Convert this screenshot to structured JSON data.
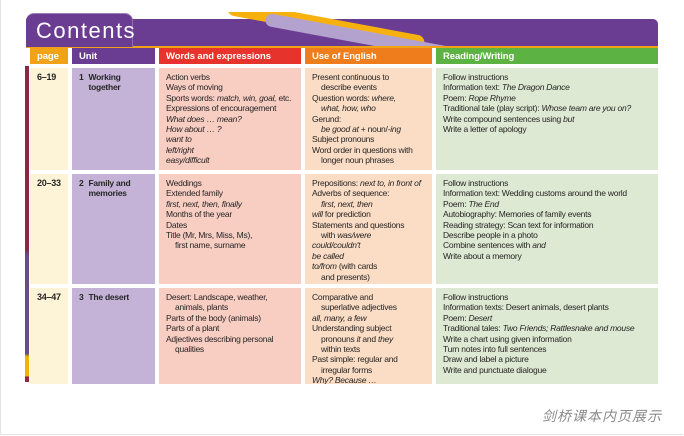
{
  "banner": {
    "title": "Contents",
    "bg": "#6b3d92",
    "underline": "#f0a316",
    "swoosh_yellow": "#f7b10e",
    "swoosh_lavender": "#b4a2ce"
  },
  "left_stripe": {
    "maroon": "#8a2743",
    "purple": "#6b4a86",
    "yellow": "#f2b200"
  },
  "caption": "剑桥课本内页展示",
  "table": {
    "columns": [
      {
        "key": "page",
        "label": "page",
        "header_bg": "#f0a316",
        "cell_bg": "#fdf3d6"
      },
      {
        "key": "unit",
        "label": "Unit",
        "header_bg": "#6b3d92",
        "cell_bg": "#c4b2d7"
      },
      {
        "key": "words",
        "label": "Words and expressions",
        "header_bg": "#e6342c",
        "cell_bg": "#f8cdc2"
      },
      {
        "key": "english",
        "label": "Use of English",
        "header_bg": "#ef7d1b",
        "cell_bg": "#fbdcc4"
      },
      {
        "key": "reading",
        "label": "Reading/Writing",
        "header_bg": "#5cb343",
        "cell_bg": "#dde9d2"
      }
    ],
    "rows": [
      {
        "page": "6–19",
        "unit": {
          "num": "1",
          "name": [
            "Working",
            "together"
          ]
        },
        "words": [
          {
            "s": [
              [
                "Action verbs"
              ]
            ]
          },
          {
            "s": [
              [
                "Ways of moving"
              ]
            ]
          },
          {
            "s": [
              [
                "Sports words: "
              ],
              [
                "match, win, goal,",
                1
              ],
              [
                " etc."
              ]
            ]
          },
          {
            "s": [
              [
                "Expressions of encouragement"
              ]
            ]
          },
          {
            "s": [
              [
                "What does … mean?",
                1
              ]
            ]
          },
          {
            "s": [
              [
                "How about … ?",
                1
              ]
            ]
          },
          {
            "s": [
              [
                "want to",
                1
              ]
            ]
          },
          {
            "s": [
              [
                "left/right",
                1
              ]
            ]
          },
          {
            "s": [
              [
                "easy/difficult",
                1
              ]
            ]
          }
        ],
        "english": [
          {
            "s": [
              [
                "Present continuous to"
              ]
            ]
          },
          {
            "ind": 1,
            "s": [
              [
                "describe events"
              ]
            ]
          },
          {
            "s": [
              [
                "Question words: "
              ],
              [
                "where,",
                1
              ]
            ]
          },
          {
            "ind": 1,
            "s": [
              [
                "what, how, who",
                1
              ]
            ]
          },
          {
            "s": [
              [
                "Gerund:"
              ]
            ]
          },
          {
            "ind": 1,
            "s": [
              [
                "be good at",
                1
              ],
              [
                " + noun/"
              ],
              [
                "-ing",
                1
              ]
            ]
          },
          {
            "s": [
              [
                "Subject pronouns"
              ]
            ]
          },
          {
            "s": [
              [
                "Word order in questions with"
              ]
            ]
          },
          {
            "ind": 1,
            "s": [
              [
                "longer noun phrases"
              ]
            ]
          }
        ],
        "reading": [
          {
            "s": [
              [
                "Follow instructions"
              ]
            ]
          },
          {
            "s": [
              [
                "Information text: "
              ],
              [
                "The Dragon Dance",
                1
              ]
            ]
          },
          {
            "s": [
              [
                "Poem: "
              ],
              [
                "Rope Rhyme",
                1
              ]
            ]
          },
          {
            "s": [
              [
                "Traditional tale (play script): "
              ],
              [
                "Whose team are you on?",
                1
              ]
            ]
          },
          {
            "s": [
              [
                "Write compound sentences using "
              ],
              [
                "but",
                1
              ]
            ]
          },
          {
            "s": [
              [
                "Write a letter of apology"
              ]
            ]
          }
        ]
      },
      {
        "page": "20–33",
        "unit": {
          "num": "2",
          "name": [
            "Family and",
            "memories"
          ]
        },
        "words": [
          {
            "s": [
              [
                "Weddings"
              ]
            ]
          },
          {
            "s": [
              [
                "Extended family"
              ]
            ]
          },
          {
            "s": [
              [
                "first, next, then, finally",
                1
              ]
            ]
          },
          {
            "s": [
              [
                "Months of the year"
              ]
            ]
          },
          {
            "s": [
              [
                "Dates"
              ]
            ]
          },
          {
            "s": [
              [
                "Title (Mr, Mrs, Miss, Ms),"
              ]
            ]
          },
          {
            "ind": 1,
            "s": [
              [
                "first name, surname"
              ]
            ]
          }
        ],
        "english": [
          {
            "s": [
              [
                "Prepositions: "
              ],
              [
                "next to, in front of",
                1
              ]
            ]
          },
          {
            "s": [
              [
                "Adverbs of sequence:"
              ]
            ]
          },
          {
            "ind": 1,
            "s": [
              [
                "first, next, then",
                1
              ]
            ]
          },
          {
            "s": [
              [
                "will",
                1
              ],
              [
                " for prediction"
              ]
            ]
          },
          {
            "s": [
              [
                "Statements and questions"
              ]
            ]
          },
          {
            "ind": 1,
            "s": [
              [
                "with "
              ],
              [
                "was/were",
                1
              ]
            ]
          },
          {
            "s": [
              [
                "could/couldn't",
                1
              ]
            ]
          },
          {
            "s": [
              [
                "be called",
                1
              ]
            ]
          },
          {
            "s": [
              [
                "to/from",
                1
              ],
              [
                " (with cards"
              ]
            ]
          },
          {
            "ind": 1,
            "s": [
              [
                "and presents)"
              ]
            ]
          }
        ],
        "reading": [
          {
            "s": [
              [
                "Follow instructions"
              ]
            ]
          },
          {
            "s": [
              [
                "Information text: Wedding customs around the world"
              ]
            ]
          },
          {
            "s": [
              [
                "Poem: "
              ],
              [
                "The End",
                1
              ]
            ]
          },
          {
            "s": [
              [
                "Autobiography: Memories of family events"
              ]
            ]
          },
          {
            "s": [
              [
                "Reading strategy: Scan text for information"
              ]
            ]
          },
          {
            "s": [
              [
                "Describe people in a photo"
              ]
            ]
          },
          {
            "s": [
              [
                "Combine sentences with "
              ],
              [
                "and",
                1
              ]
            ]
          },
          {
            "s": [
              [
                "Write about a memory"
              ]
            ]
          }
        ]
      },
      {
        "page": "34–47",
        "unit": {
          "num": "3",
          "name": [
            "The desert"
          ]
        },
        "words": [
          {
            "s": [
              [
                "Desert: Landscape, weather,"
              ]
            ]
          },
          {
            "ind": 1,
            "s": [
              [
                "animals, plants"
              ]
            ]
          },
          {
            "s": [
              [
                "Parts of the body (animals)"
              ]
            ]
          },
          {
            "s": [
              [
                "Parts of a plant"
              ]
            ]
          },
          {
            "s": [
              [
                "Adjectives describing personal"
              ]
            ]
          },
          {
            "ind": 1,
            "s": [
              [
                "qualities"
              ]
            ]
          }
        ],
        "english": [
          {
            "s": [
              [
                "Comparative and"
              ]
            ]
          },
          {
            "ind": 1,
            "s": [
              [
                "superlative adjectives"
              ]
            ]
          },
          {
            "s": [
              [
                "all, many, a few",
                1
              ]
            ]
          },
          {
            "s": [
              [
                "Understanding subject"
              ]
            ]
          },
          {
            "ind": 1,
            "s": [
              [
                "pronouns ",
                0
              ],
              [
                "it",
                1
              ],
              [
                " and ",
                0
              ],
              [
                "they",
                1
              ]
            ]
          },
          {
            "ind": 1,
            "s": [
              [
                "within texts"
              ]
            ]
          },
          {
            "s": [
              [
                "Past simple: regular and"
              ]
            ]
          },
          {
            "ind": 1,
            "s": [
              [
                "irregular forms"
              ]
            ]
          },
          {
            "s": [
              [
                "Why? Because …",
                1
              ]
            ]
          }
        ],
        "reading": [
          {
            "s": [
              [
                "Follow instructions"
              ]
            ]
          },
          {
            "s": [
              [
                "Information texts: Desert animals, desert plants"
              ]
            ]
          },
          {
            "s": [
              [
                "Poem: "
              ],
              [
                "Desert",
                1
              ]
            ]
          },
          {
            "s": [
              [
                "Traditional tales: "
              ],
              [
                "Two Friends; Rattlesnake and mouse",
                1
              ]
            ]
          },
          {
            "s": [
              [
                "Write a chart using given information"
              ]
            ]
          },
          {
            "s": [
              [
                "Turn notes into full sentences"
              ]
            ]
          },
          {
            "s": [
              [
                "Draw and label a picture"
              ]
            ]
          },
          {
            "s": [
              [
                "Write and punctuate dialogue"
              ]
            ]
          }
        ]
      }
    ]
  }
}
